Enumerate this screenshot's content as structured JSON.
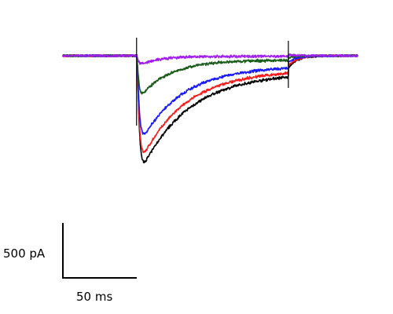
{
  "chart_data": {
    "type": "line",
    "title": "",
    "xlabel": "",
    "ylabel": "",
    "xlim": [
      0,
      200
    ],
    "ylim": [
      -1150,
      50
    ],
    "grid": false,
    "legend": "none",
    "scale_bars": {
      "y": {
        "value": 500,
        "unit": "pA",
        "label": "500 pA"
      },
      "x": {
        "value": 50,
        "unit": "ms",
        "label": "50 ms"
      }
    },
    "pulse": {
      "start_ms": 50,
      "end_ms": 153
    },
    "series": [
      {
        "color": "#000000",
        "baseline": 0,
        "peak": -1140,
        "tau_rise_ms": 1.2,
        "tau_decay_ms": 32,
        "steady_state": -155,
        "tail_jump": 45
      },
      {
        "color": "#ff1a1a",
        "baseline": 0,
        "peak": -1045,
        "tau_rise_ms": 1.2,
        "tau_decay_ms": 30,
        "steady_state": -130,
        "tail_jump": 40
      },
      {
        "color": "#1a1aff",
        "baseline": 0,
        "peak": -860,
        "tau_rise_ms": 1.2,
        "tau_decay_ms": 28,
        "steady_state": -95,
        "tail_jump": 35
      },
      {
        "color": "#1a5c1a",
        "baseline": 0,
        "peak": -420,
        "tau_rise_ms": 1.0,
        "tau_decay_ms": 20,
        "steady_state": -40,
        "tail_jump": 25
      },
      {
        "color": "#a020f0",
        "baseline": 0,
        "peak": -95,
        "tau_rise_ms": 1.0,
        "tau_decay_ms": 14,
        "steady_state": -5,
        "tail_jump": 15
      }
    ]
  }
}
